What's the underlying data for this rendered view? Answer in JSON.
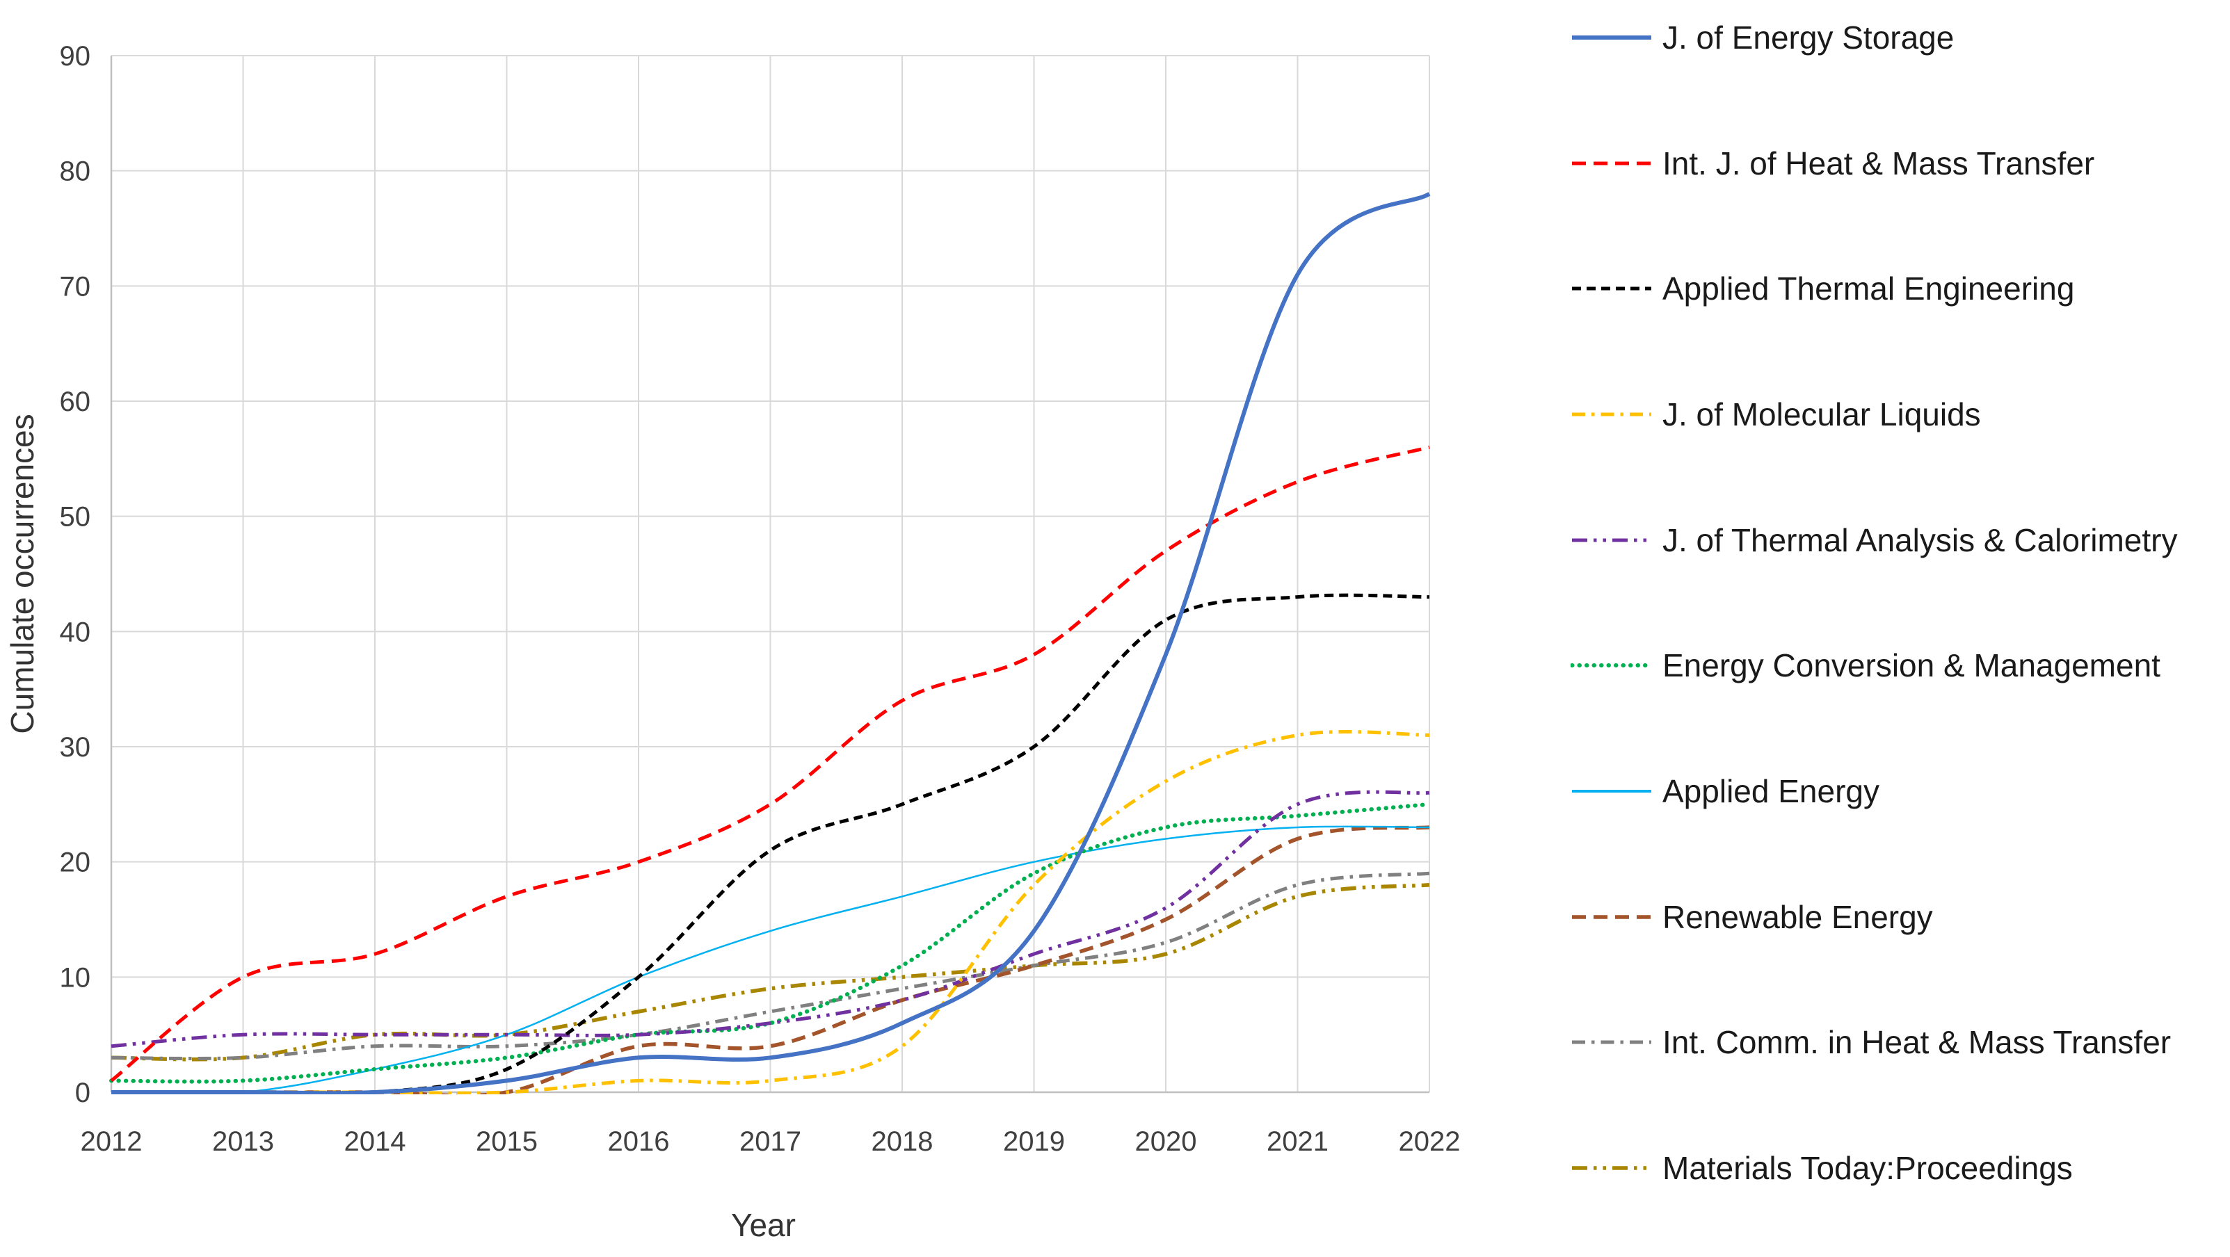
{
  "chart_data": {
    "type": "line",
    "title": "",
    "xlabel": "Year",
    "ylabel": "Cumulate occurrences",
    "x": [
      2012,
      2013,
      2014,
      2015,
      2016,
      2017,
      2018,
      2019,
      2020,
      2021,
      2022
    ],
    "ylim": [
      0,
      90
    ],
    "ytick_step": 10,
    "grid": "on",
    "legend_position": "right",
    "gridline_color": "#D9D9D9",
    "axis_line_color": "#BFBFBF",
    "series": [
      {
        "name": "J. of Energy Storage",
        "color": "#4472C4",
        "style": "solid",
        "width": 6,
        "values": [
          0,
          0,
          0,
          1,
          3,
          3,
          6,
          14,
          38,
          71,
          78
        ]
      },
      {
        "name": "Int. J. of Heat & Mass Transfer",
        "color": "#FF0000",
        "style": "dash-long",
        "width": 5,
        "values": [
          1,
          10,
          12,
          17,
          20,
          25,
          34,
          38,
          47,
          53,
          56
        ]
      },
      {
        "name": "Applied Thermal Engineering",
        "color": "#000000",
        "style": "dash",
        "width": 5,
        "values": [
          0,
          0,
          0,
          2,
          10,
          21,
          25,
          30,
          41,
          43,
          43
        ]
      },
      {
        "name": "J. of Molecular Liquids",
        "color": "#FFC000",
        "style": "dash-dot",
        "width": 5,
        "values": [
          0,
          0,
          0,
          0,
          1,
          1,
          4,
          18,
          27,
          31,
          31
        ]
      },
      {
        "name": "J. of Thermal Analysis & Calorimetry",
        "color": "#7030A0",
        "style": "dash-dot-dot",
        "width": 5,
        "values": [
          4,
          5,
          5,
          5,
          5,
          6,
          8,
          12,
          16,
          25,
          26
        ]
      },
      {
        "name": "Energy Conversion & Management",
        "color": "#00B050",
        "style": "dot",
        "width": 6,
        "values": [
          1,
          1,
          2,
          3,
          5,
          6,
          11,
          19,
          23,
          24,
          25
        ]
      },
      {
        "name": "Applied Energy",
        "color": "#00B0F0",
        "style": "solid",
        "width": 2.5,
        "values": [
          0,
          0,
          2,
          5,
          10,
          14,
          17,
          20,
          22,
          23,
          23
        ]
      },
      {
        "name": "Renewable Energy",
        "color": "#A3542A",
        "style": "dash-long",
        "width": 5.5,
        "values": [
          0,
          0,
          0,
          0,
          4,
          4,
          8,
          11,
          15,
          22,
          23
        ]
      },
      {
        "name": "Int. Comm. in Heat & Mass Transfer",
        "color": "#808080",
        "style": "dash-dot",
        "width": 5,
        "values": [
          3,
          3,
          4,
          4,
          5,
          7,
          9,
          11,
          13,
          18,
          19
        ]
      },
      {
        "name": "Materials Today:Proceedings",
        "color": "#A98600",
        "style": "dash-dot-dot",
        "width": 5.5,
        "values": [
          3,
          3,
          5,
          5,
          7,
          9,
          10,
          11,
          12,
          17,
          18
        ]
      }
    ]
  },
  "axes": {
    "x_title": "Year",
    "y_title": "Cumulate occurrences",
    "x_tick_labels": [
      "2012",
      "2013",
      "2014",
      "2015",
      "2016",
      "2017",
      "2018",
      "2019",
      "2020",
      "2021",
      "2022"
    ],
    "y_tick_labels": [
      "0",
      "10",
      "20",
      "30",
      "40",
      "50",
      "60",
      "70",
      "80",
      "90"
    ]
  }
}
